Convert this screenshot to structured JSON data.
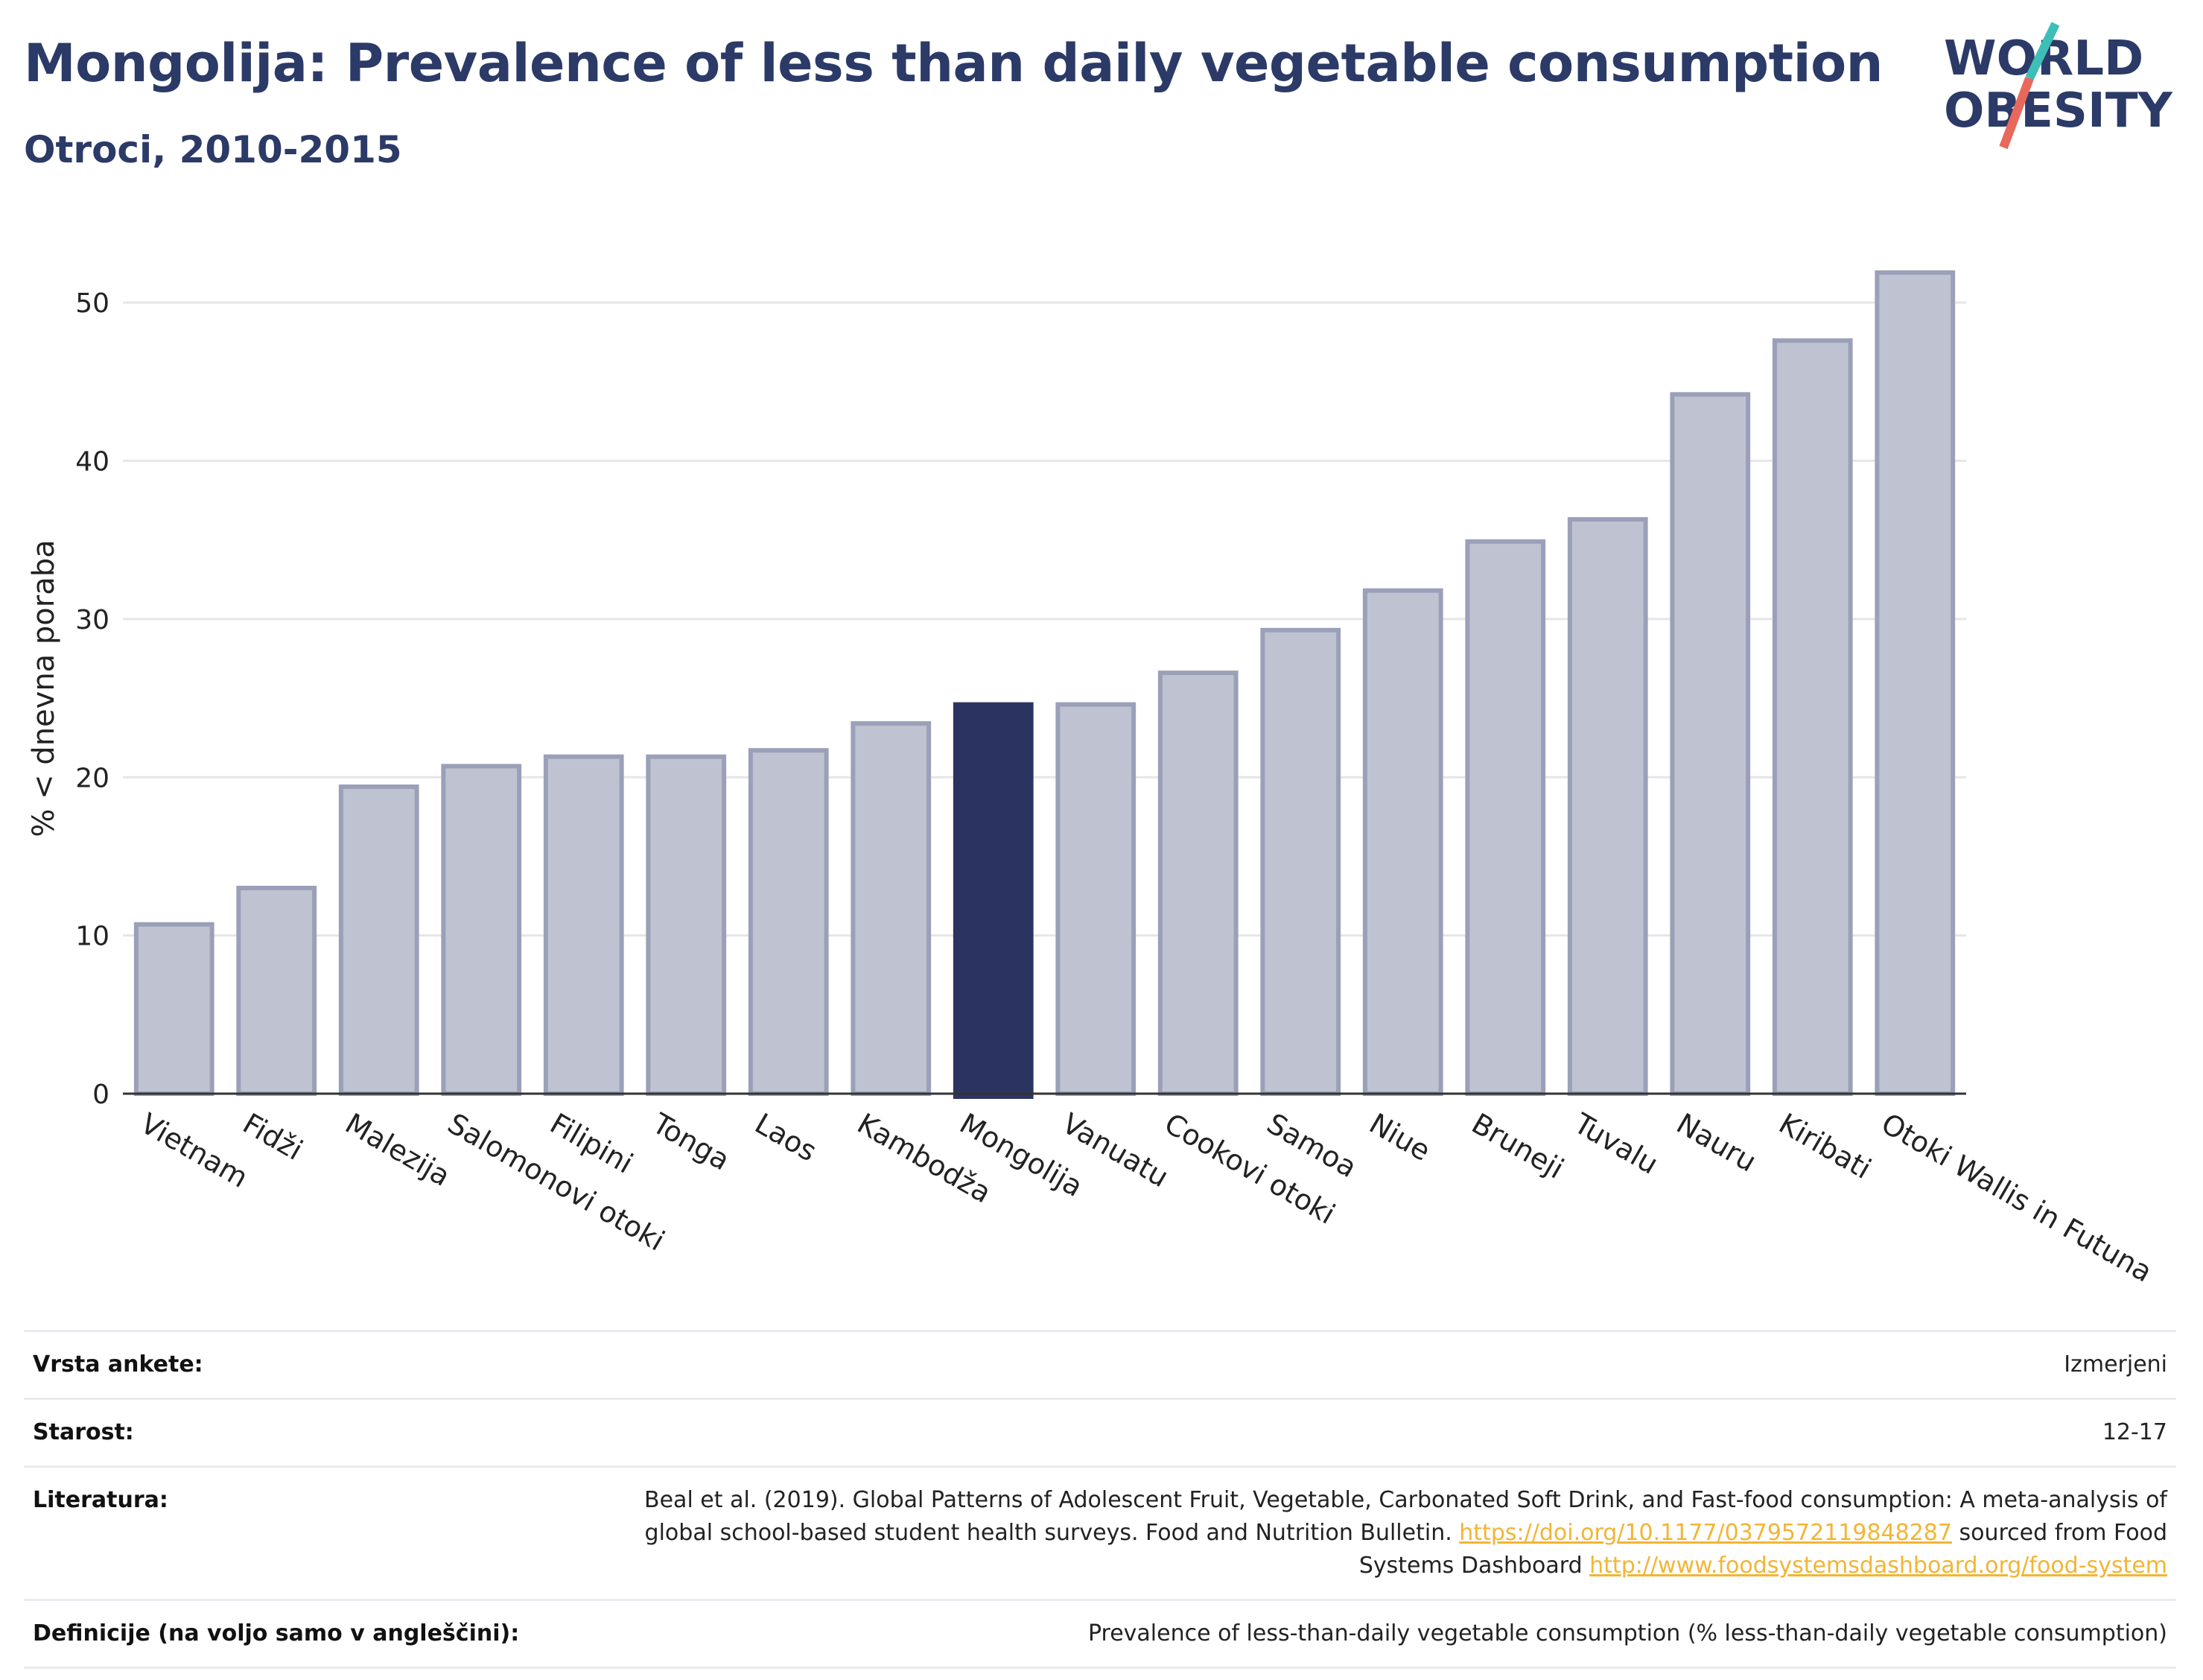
{
  "header": {
    "title": "Mongolija: Prevalence of less than daily vegetable consumption",
    "subtitle": "Otroci, 2010-2015"
  },
  "logo": {
    "line1": "WORLD",
    "line2": "OBESITY",
    "colors": {
      "text": "#2b3a67",
      "slash_top": "#3dbfb8",
      "slash_bottom": "#e8685b"
    }
  },
  "colors": {
    "bar": "#bfc3d1",
    "bar_stroke": "#9aa0b8",
    "highlight": "#2b3461",
    "grid": "#e6e6ea",
    "axis": "#333333"
  },
  "chart_data": {
    "type": "bar",
    "categories": [
      "Vietnam",
      "Fidži",
      "Malezija",
      "Salomonovi otoki",
      "Filipini",
      "Tonga",
      "Laos",
      "Kambodža",
      "Mongolija",
      "Vanuatu",
      "Cookovi otoki",
      "Samoa",
      "Niue",
      "Bruneji",
      "Tuvalu",
      "Nauru",
      "Kiribati",
      "Otoki Wallis in Futuna"
    ],
    "values": [
      10.7,
      13.0,
      19.4,
      20.7,
      21.3,
      21.3,
      21.7,
      23.4,
      24.6,
      24.6,
      26.6,
      29.3,
      31.8,
      34.9,
      36.3,
      44.2,
      47.6,
      51.9
    ],
    "highlight": "Mongolija",
    "title": "Mongolija: Prevalence of less than daily vegetable consumption",
    "subtitle": "Otroci, 2010-2015",
    "xlabel": "",
    "ylabel": "% < dnevna poraba",
    "ylim": [
      0,
      55
    ],
    "yticks": [
      0,
      10,
      20,
      30,
      40,
      50
    ],
    "grid": true,
    "legend": "none"
  },
  "meta": {
    "rows": [
      {
        "key": "Vrsta ankete:",
        "value": "Izmerjeni"
      },
      {
        "key": "Starost:",
        "value": "12-17"
      },
      {
        "key": "Literatura:",
        "value_pre": "Beal et al. (2019). Global Patterns of Adolescent Fruit, Vegetable, Carbonated Soft Drink, and Fast-food consumption: A meta-analysis of global school-based student health surveys. Food and Nutrition Bulletin. ",
        "link1": "https://doi.org/10.1177/0379572119848287",
        "value_mid": " sourced from Food Systems Dashboard ",
        "link2": "http://www.foodsystemsdashboard.org/food-system"
      },
      {
        "key": "Definicije (na voljo samo v angleščini):",
        "value": "Prevalence of less-than-daily vegetable consumption (% less-than-daily vegetable consumption)"
      }
    ]
  }
}
